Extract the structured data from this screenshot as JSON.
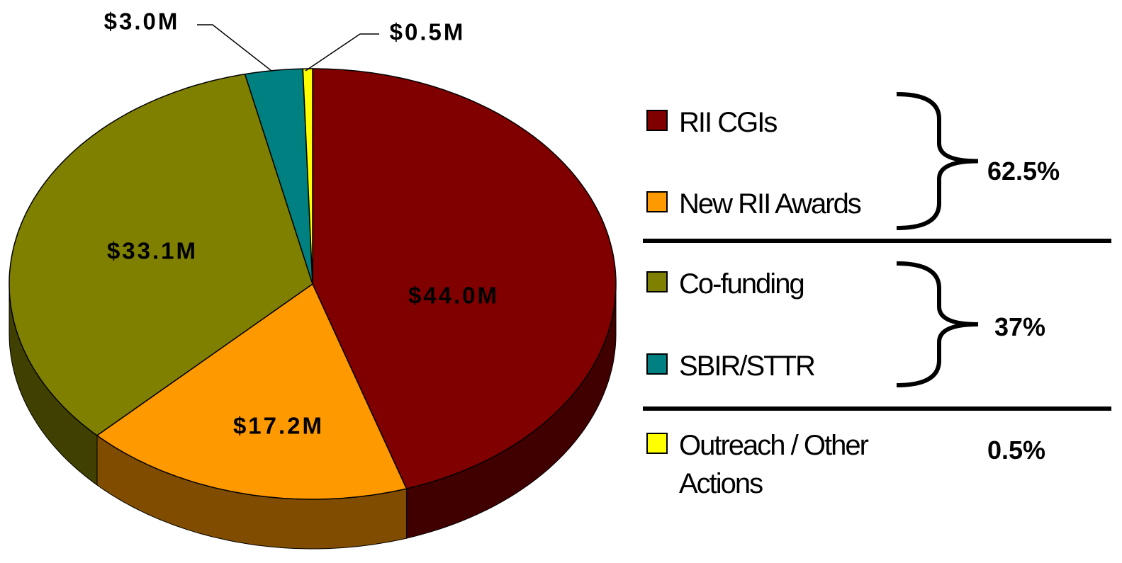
{
  "chart_data": {
    "type": "pie3d",
    "categories": [
      "RII CGIs",
      "New RII Awards",
      "Co-funding",
      "SBIR/STTR",
      "Outreach / Other Actions"
    ],
    "values": [
      44.0,
      17.2,
      33.1,
      3.0,
      0.5
    ],
    "value_labels": [
      "$44.0M",
      "$17.2M",
      "$33.1M",
      "$3.0M",
      "$0.5M"
    ],
    "colors": [
      "#800000",
      "#ff9900",
      "#808000",
      "#008080",
      "#ffff00"
    ],
    "side_colors": [
      "#400000",
      "#7f4c00",
      "#404000",
      "#004040",
      "#808000"
    ],
    "group_totals": [
      {
        "value": 62.5,
        "label": "62.5%"
      },
      {
        "value": 37,
        "label": "37%"
      },
      {
        "value": 0.5,
        "label": "0.5%"
      }
    ]
  }
}
